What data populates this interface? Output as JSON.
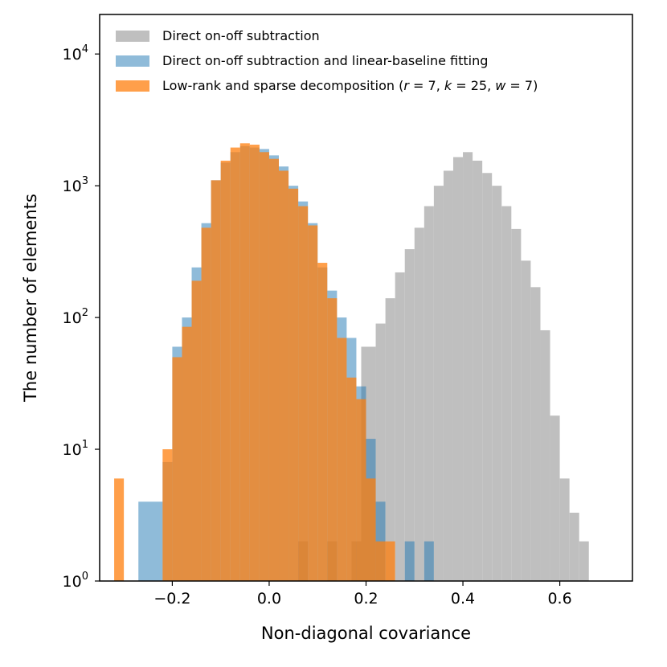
{
  "chart_data": {
    "type": "histogram",
    "xlabel": "Non-diagonal covariance",
    "ylabel": "The number of elements",
    "xlim": [
      -0.35,
      0.75
    ],
    "ylim_log10": [
      0,
      4.3
    ],
    "yscale": "log",
    "x_ticks": [
      -0.2,
      0.0,
      0.2,
      0.4,
      0.6
    ],
    "x_tick_labels": [
      "−0.2",
      "0.0",
      "0.2",
      "0.4",
      "0.6"
    ],
    "y_ticks": [
      {
        "value": 1,
        "base": "10",
        "exp": "0"
      },
      {
        "value": 10,
        "base": "10",
        "exp": "1"
      },
      {
        "value": 100,
        "base": "10",
        "exp": "2"
      },
      {
        "value": 1000,
        "base": "10",
        "exp": "3"
      },
      {
        "value": 10000,
        "base": "10",
        "exp": "4"
      }
    ],
    "legend_position": "top-left",
    "series": [
      {
        "name": "Direct on-off subtraction",
        "color": "#bfbfbf",
        "opacity": 1,
        "bins": [
          {
            "x0": 0.06,
            "x1": 0.08,
            "count": 2
          },
          {
            "x0": 0.12,
            "x1": 0.14,
            "count": 2
          },
          {
            "x0": 0.17,
            "x1": 0.19,
            "count": 2
          },
          {
            "x0": 0.19,
            "x1": 0.22,
            "count": 60
          },
          {
            "x0": 0.22,
            "x1": 0.24,
            "count": 90
          },
          {
            "x0": 0.24,
            "x1": 0.26,
            "count": 140
          },
          {
            "x0": 0.26,
            "x1": 0.28,
            "count": 220
          },
          {
            "x0": 0.28,
            "x1": 0.3,
            "count": 330
          },
          {
            "x0": 0.3,
            "x1": 0.32,
            "count": 480
          },
          {
            "x0": 0.32,
            "x1": 0.34,
            "count": 700
          },
          {
            "x0": 0.34,
            "x1": 0.36,
            "count": 1000
          },
          {
            "x0": 0.36,
            "x1": 0.38,
            "count": 1300
          },
          {
            "x0": 0.38,
            "x1": 0.4,
            "count": 1650
          },
          {
            "x0": 0.4,
            "x1": 0.42,
            "count": 1800
          },
          {
            "x0": 0.42,
            "x1": 0.44,
            "count": 1550
          },
          {
            "x0": 0.44,
            "x1": 0.46,
            "count": 1250
          },
          {
            "x0": 0.46,
            "x1": 0.48,
            "count": 1000
          },
          {
            "x0": 0.48,
            "x1": 0.5,
            "count": 700
          },
          {
            "x0": 0.5,
            "x1": 0.52,
            "count": 470
          },
          {
            "x0": 0.52,
            "x1": 0.54,
            "count": 270
          },
          {
            "x0": 0.54,
            "x1": 0.56,
            "count": 170
          },
          {
            "x0": 0.56,
            "x1": 0.58,
            "count": 80
          },
          {
            "x0": 0.58,
            "x1": 0.6,
            "count": 18
          },
          {
            "x0": 0.6,
            "x1": 0.62,
            "count": 6
          },
          {
            "x0": 0.62,
            "x1": 0.64,
            "count": 3.3
          },
          {
            "x0": 0.64,
            "x1": 0.66,
            "count": 2
          }
        ]
      },
      {
        "name": "Direct on-off subtraction and linear-baseline fitting",
        "color": "#1f77b4",
        "opacity": 0.5,
        "bins": [
          {
            "x0": -0.27,
            "x1": -0.22,
            "count": 4
          },
          {
            "x0": -0.22,
            "x1": -0.2,
            "count": 8
          },
          {
            "x0": -0.2,
            "x1": -0.18,
            "count": 60
          },
          {
            "x0": -0.18,
            "x1": -0.16,
            "count": 100
          },
          {
            "x0": -0.16,
            "x1": -0.14,
            "count": 240
          },
          {
            "x0": -0.14,
            "x1": -0.12,
            "count": 520
          },
          {
            "x0": -0.12,
            "x1": -0.1,
            "count": 1100
          },
          {
            "x0": -0.1,
            "x1": -0.08,
            "count": 1500
          },
          {
            "x0": -0.08,
            "x1": -0.06,
            "count": 1800
          },
          {
            "x0": -0.06,
            "x1": -0.04,
            "count": 2000
          },
          {
            "x0": -0.04,
            "x1": -0.02,
            "count": 1950
          },
          {
            "x0": -0.02,
            "x1": 0.0,
            "count": 1900
          },
          {
            "x0": 0.0,
            "x1": 0.02,
            "count": 1700
          },
          {
            "x0": 0.02,
            "x1": 0.04,
            "count": 1400
          },
          {
            "x0": 0.04,
            "x1": 0.06,
            "count": 1000
          },
          {
            "x0": 0.06,
            "x1": 0.08,
            "count": 760
          },
          {
            "x0": 0.08,
            "x1": 0.1,
            "count": 520
          },
          {
            "x0": 0.1,
            "x1": 0.12,
            "count": 240
          },
          {
            "x0": 0.12,
            "x1": 0.14,
            "count": 160
          },
          {
            "x0": 0.14,
            "x1": 0.16,
            "count": 100
          },
          {
            "x0": 0.16,
            "x1": 0.18,
            "count": 70
          },
          {
            "x0": 0.18,
            "x1": 0.2,
            "count": 30
          },
          {
            "x0": 0.2,
            "x1": 0.22,
            "count": 12
          },
          {
            "x0": 0.22,
            "x1": 0.24,
            "count": 4
          },
          {
            "x0": 0.28,
            "x1": 0.3,
            "count": 2
          },
          {
            "x0": 0.32,
            "x1": 0.34,
            "count": 2
          }
        ]
      },
      {
        "name": "Low-rank and sparse decomposition (r = 7, k = 25, w = 7)",
        "color": "#ff7f0e",
        "opacity": 0.75,
        "bins": [
          {
            "x0": -0.32,
            "x1": -0.3,
            "count": 6
          },
          {
            "x0": -0.22,
            "x1": -0.2,
            "count": 10
          },
          {
            "x0": -0.2,
            "x1": -0.18,
            "count": 50
          },
          {
            "x0": -0.18,
            "x1": -0.16,
            "count": 85
          },
          {
            "x0": -0.16,
            "x1": -0.14,
            "count": 190
          },
          {
            "x0": -0.14,
            "x1": -0.12,
            "count": 480
          },
          {
            "x0": -0.12,
            "x1": -0.1,
            "count": 1100
          },
          {
            "x0": -0.1,
            "x1": -0.08,
            "count": 1550
          },
          {
            "x0": -0.08,
            "x1": -0.06,
            "count": 1950
          },
          {
            "x0": -0.06,
            "x1": -0.04,
            "count": 2100
          },
          {
            "x0": -0.04,
            "x1": -0.02,
            "count": 2050
          },
          {
            "x0": -0.02,
            "x1": 0.0,
            "count": 1800
          },
          {
            "x0": 0.0,
            "x1": 0.02,
            "count": 1600
          },
          {
            "x0": 0.02,
            "x1": 0.04,
            "count": 1300
          },
          {
            "x0": 0.04,
            "x1": 0.06,
            "count": 950
          },
          {
            "x0": 0.06,
            "x1": 0.08,
            "count": 700
          },
          {
            "x0": 0.08,
            "x1": 0.1,
            "count": 500
          },
          {
            "x0": 0.1,
            "x1": 0.12,
            "count": 260
          },
          {
            "x0": 0.12,
            "x1": 0.14,
            "count": 140
          },
          {
            "x0": 0.14,
            "x1": 0.16,
            "count": 70
          },
          {
            "x0": 0.16,
            "x1": 0.18,
            "count": 35
          },
          {
            "x0": 0.18,
            "x1": 0.2,
            "count": 24
          },
          {
            "x0": 0.2,
            "x1": 0.22,
            "count": 6
          },
          {
            "x0": 0.22,
            "x1": 0.24,
            "count": 2
          },
          {
            "x0": 0.24,
            "x1": 0.26,
            "count": 2
          }
        ]
      }
    ],
    "legend": [
      {
        "label": "Direct on-off subtraction",
        "color": "#bfbfbf",
        "opacity": 1
      },
      {
        "label": "Direct on-off subtraction and linear-baseline fitting",
        "color": "#1f77b4",
        "opacity": 0.5
      },
      {
        "label_parts": [
          "Low-rank and sparse decomposition (",
          "r",
          " = 7, ",
          "k",
          " = 25, ",
          "w",
          " = 7)"
        ],
        "color": "#ff7f0e",
        "opacity": 0.75
      }
    ]
  }
}
